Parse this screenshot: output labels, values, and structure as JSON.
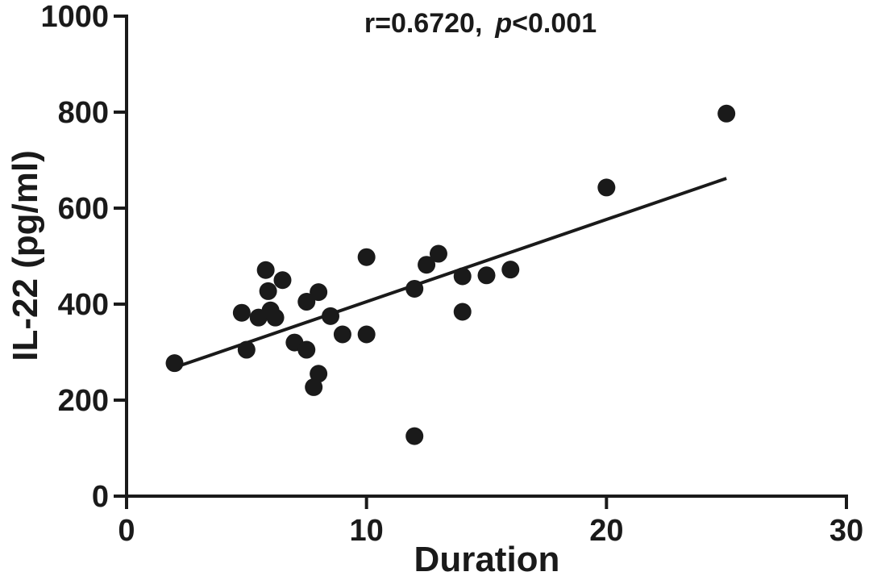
{
  "chart_data": {
    "type": "scatter",
    "title": "",
    "annotation": {
      "r_text": "r=0.6720,",
      "p_symbol": "p",
      "p_value_text": "<0.001"
    },
    "xlabel": "Duration",
    "ylabel": "IL-22 (pg/ml)",
    "xlim": [
      0,
      30
    ],
    "ylim": [
      0,
      1000
    ],
    "xticks": [
      0,
      10,
      20,
      30
    ],
    "yticks": [
      0,
      200,
      400,
      600,
      800,
      1000
    ],
    "grid": false,
    "legend": "none",
    "points": [
      {
        "x": 2,
        "y": 277
      },
      {
        "x": 4.8,
        "y": 382
      },
      {
        "x": 5,
        "y": 305
      },
      {
        "x": 5.5,
        "y": 372
      },
      {
        "x": 5.8,
        "y": 471
      },
      {
        "x": 5.9,
        "y": 427
      },
      {
        "x": 6,
        "y": 387
      },
      {
        "x": 6.2,
        "y": 372
      },
      {
        "x": 6.5,
        "y": 450
      },
      {
        "x": 7,
        "y": 320
      },
      {
        "x": 7.5,
        "y": 405
      },
      {
        "x": 7.5,
        "y": 305
      },
      {
        "x": 7.8,
        "y": 227
      },
      {
        "x": 8,
        "y": 425
      },
      {
        "x": 8,
        "y": 255
      },
      {
        "x": 8.5,
        "y": 375
      },
      {
        "x": 9,
        "y": 337
      },
      {
        "x": 10,
        "y": 498
      },
      {
        "x": 10,
        "y": 337
      },
      {
        "x": 12,
        "y": 432
      },
      {
        "x": 12,
        "y": 125
      },
      {
        "x": 12.5,
        "y": 482
      },
      {
        "x": 13,
        "y": 505
      },
      {
        "x": 14,
        "y": 458
      },
      {
        "x": 14,
        "y": 384
      },
      {
        "x": 15,
        "y": 460
      },
      {
        "x": 16,
        "y": 472
      },
      {
        "x": 20,
        "y": 643
      },
      {
        "x": 25,
        "y": 797
      }
    ],
    "regression_line": {
      "x": [
        2,
        25
      ],
      "y": [
        268,
        662
      ]
    },
    "colors": {
      "marker": "#1a1a1a",
      "axis": "#1a1a1a",
      "line": "#1a1a1a"
    }
  }
}
